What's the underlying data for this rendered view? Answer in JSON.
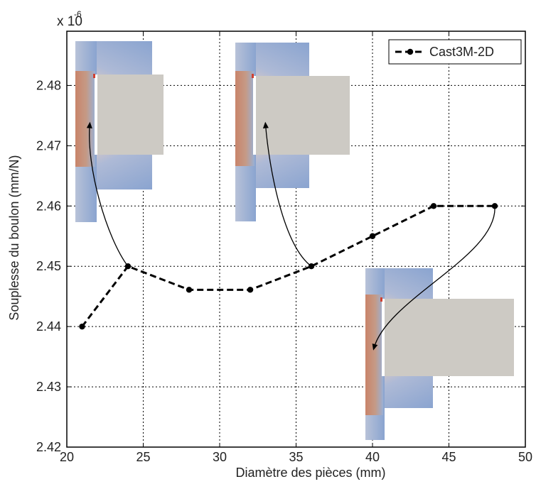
{
  "chart_data": {
    "type": "line",
    "title": "",
    "xlabel": "Diamètre des pièces (mm)",
    "ylabel": "Souplesse du boulon (mm/N)",
    "y_multiplier": {
      "base": "x 10",
      "exponent": "-6"
    },
    "xlim": [
      20,
      50
    ],
    "ylim": [
      2.42,
      2.489
    ],
    "xticks": [
      20,
      25,
      30,
      35,
      40,
      45,
      50
    ],
    "xtick_labels": [
      "20",
      "25",
      "30",
      "35",
      "40",
      "45",
      "50"
    ],
    "yticks": [
      2.42,
      2.43,
      2.44,
      2.45,
      2.46,
      2.47,
      2.48
    ],
    "ytick_labels": [
      "2.42",
      "2.43",
      "2.44",
      "2.45",
      "2.46",
      "2.47",
      "2.48"
    ],
    "grid": true,
    "legend_position": "top-right",
    "series": [
      {
        "name": "Cast3M-2D",
        "color": "#000000",
        "line_style": "dashed",
        "marker": "circle",
        "x": [
          21,
          24,
          28,
          32,
          36,
          40,
          44,
          48
        ],
        "y": [
          2.44,
          2.45,
          2.4461,
          2.4461,
          2.45,
          2.455,
          2.46,
          2.46
        ]
      }
    ],
    "annotations": [
      {
        "from": [
          24,
          2.45
        ],
        "to": [
          21.5,
          2.4735
        ],
        "image": "fem-contour-small"
      },
      {
        "from": [
          36,
          2.45
        ],
        "to": [
          33,
          2.4735
        ],
        "image": "fem-contour-medium"
      },
      {
        "from": [
          48,
          2.46
        ],
        "to": [
          40.1,
          2.4365
        ],
        "image": "fem-contour-large"
      }
    ],
    "colors": {
      "high_stress": "#c8876a",
      "low_stress": "#8aa4d0",
      "plate": "#cdcac4"
    }
  }
}
